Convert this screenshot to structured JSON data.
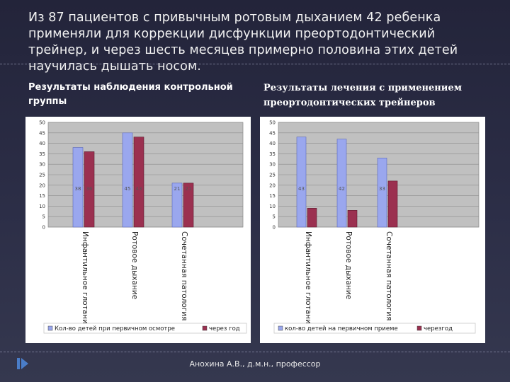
{
  "slide": {
    "title_lines": [
      "Из 87 пациентов с привычным ротовым дыханием 42 ребенка",
      "применяли для коррекции дисфункции преортодонтический",
      "трейнер, и через  шесть месяцев примерно  половина этих детей",
      "научилась дышать носом."
    ],
    "subtitle_left_lines": [
      "Результаты наблюдения контрольной",
      "группы"
    ],
    "subtitle_right_lines": [
      "Результаты лечения с применением",
      "преортодонтических трейнеров"
    ],
    "footer": "Анохина А.В., д.м.н., профессор"
  },
  "colors": {
    "series1": "#9aa7ee",
    "series2": "#9b3050",
    "plot_bg": "#c0c0c0"
  },
  "chart_data": [
    {
      "type": "bar",
      "title": "",
      "xlabel": "",
      "ylabel": "",
      "ylim": [
        0,
        50
      ],
      "yticks": [
        0,
        5,
        10,
        15,
        20,
        25,
        30,
        35,
        40,
        45,
        50
      ],
      "ytick_labels": [
        "0",
        "5",
        "10",
        "15",
        "20",
        "25",
        "30",
        "35",
        "40",
        "45",
        "50"
      ],
      "grid": true,
      "legend": "bottom",
      "categories": [
        "Инфантильное глотание",
        "Ротовое дыхание",
        "Сочетанная патология"
      ],
      "series": [
        {
          "name": "Кол-во детей при первичном осмотре",
          "values": [
            38,
            45,
            21
          ],
          "labels": [
            "38",
            "45",
            "21"
          ]
        },
        {
          "name": "через год",
          "values": [
            36,
            43,
            21
          ],
          "labels": [
            "36",
            "43",
            "21"
          ]
        }
      ]
    },
    {
      "type": "bar",
      "title": "",
      "xlabel": "",
      "ylabel": "",
      "ylim": [
        0,
        50
      ],
      "yticks": [
        0,
        5,
        10,
        15,
        20,
        25,
        30,
        35,
        40,
        45,
        50
      ],
      "ytick_labels": [
        "0",
        "5",
        "10",
        "15",
        "20",
        "25",
        "30",
        "35",
        "40",
        "45",
        "50"
      ],
      "grid": true,
      "legend": "bottom",
      "categories": [
        "Инфантильное глотание",
        "Ротовое дыхание",
        "Сочетанная патология"
      ],
      "series": [
        {
          "name": "кол-во детей на первичном приеме",
          "values": [
            43,
            42,
            33
          ],
          "labels": [
            "43",
            "42",
            "33"
          ]
        },
        {
          "name": "черезгод",
          "values": [
            9,
            8,
            22
          ],
          "labels": [
            "",
            "",
            ""
          ]
        }
      ]
    }
  ]
}
